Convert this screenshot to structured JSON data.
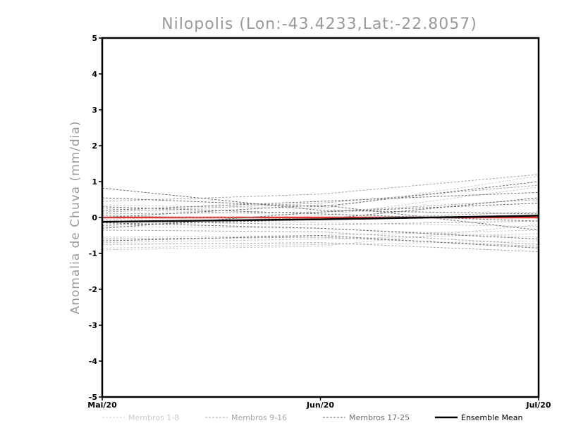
{
  "chart_data": {
    "type": "line",
    "title": "Nilopolis (Lon:-43.4233,Lat:-22.8057)",
    "ylabel": "Anomalia de Chuva (mm/dia)",
    "xlabel": "",
    "categories": [
      "Mai/20",
      "Jun/20",
      "Jul/20"
    ],
    "ylim": [
      -5,
      5
    ],
    "yticks": [
      "5",
      "4",
      "3",
      "2",
      "1",
      "0",
      "-1",
      "-2",
      "-3",
      "-4",
      "-5"
    ],
    "grid": false,
    "legend_position": "bottom",
    "legend": [
      {
        "label": "Membros 1-8",
        "color": "#cccccc",
        "style": "dashed"
      },
      {
        "label": "Membros 9-16",
        "color": "#a6a6a6",
        "style": "dashed"
      },
      {
        "label": "Membros 17-25",
        "color": "#6e6e6e",
        "style": "dashed"
      },
      {
        "label": "Ensemble Mean",
        "color": "#000000",
        "style": "solid"
      }
    ],
    "zero_line_color": "#e03030",
    "groups": [
      {
        "color": "#cccccc",
        "members": [
          [
            0.35,
            0.25,
            1.15
          ],
          [
            0.25,
            0.05,
            0.85
          ],
          [
            -0.05,
            -0.15,
            -0.25
          ],
          [
            -0.25,
            -0.3,
            -0.55
          ],
          [
            -0.55,
            -0.5,
            -0.35
          ],
          [
            -0.7,
            -0.6,
            -0.45
          ],
          [
            -0.85,
            -0.75,
            -0.65
          ],
          [
            -0.9,
            -0.8,
            -0.2
          ]
        ]
      },
      {
        "color": "#a6a6a6",
        "members": [
          [
            0.45,
            0.65,
            1.2
          ],
          [
            0.15,
            0.4,
            0.9
          ],
          [
            0.1,
            0.15,
            0.5
          ],
          [
            0.05,
            -0.05,
            0.15
          ],
          [
            -0.1,
            -0.2,
            -0.1
          ],
          [
            -0.35,
            -0.4,
            -0.75
          ],
          [
            -0.6,
            -0.55,
            -0.8
          ],
          [
            -0.75,
            -0.7,
            -0.95
          ]
        ]
      },
      {
        "color": "#6e6e6e",
        "members": [
          [
            0.82,
            0.2,
            0.1
          ],
          [
            0.55,
            0.3,
            1.0
          ],
          [
            0.3,
            0.1,
            -0.1
          ],
          [
            0.2,
            0.45,
            0.7
          ],
          [
            0.0,
            0.35,
            -0.35
          ],
          [
            -0.15,
            -0.3,
            -0.6
          ],
          [
            -0.22,
            -0.05,
            0.55
          ],
          [
            -0.3,
            0.15,
            0.4
          ],
          [
            -0.65,
            -0.5,
            -0.85
          ]
        ]
      }
    ],
    "ensemble_mean": [
      -0.12,
      -0.05,
      0.05
    ]
  }
}
